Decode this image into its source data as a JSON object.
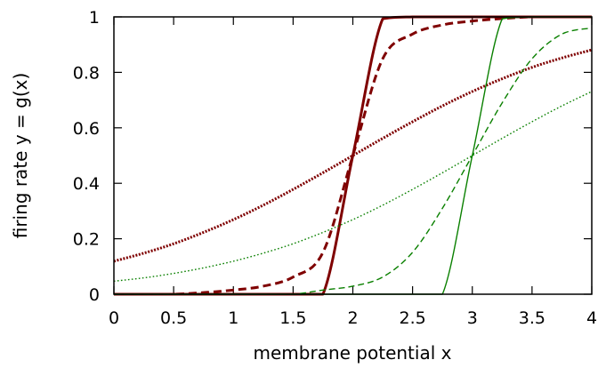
{
  "chart_data": {
    "type": "line",
    "title": "",
    "xlabel": "membrane potential x",
    "ylabel": "firing rate y = g(x)",
    "xlim": [
      0,
      4
    ],
    "ylim": [
      0,
      1
    ],
    "x_ticks": [
      "0",
      "0.5",
      "1",
      "1.5",
      "2",
      "2.5",
      "3",
      "3.5",
      "4"
    ],
    "y_ticks": [
      "0",
      "0.2",
      "0.4",
      "0.6",
      "0.8",
      "1"
    ],
    "grid": false,
    "legend": "none",
    "sampling": {
      "x_start": 0,
      "x_end": 4,
      "x_step": 0.25
    },
    "series": [
      {
        "color": "#7f0000",
        "style": "solid",
        "weight": "thick",
        "y": [
          0.0,
          0.0,
          0.0,
          0.0,
          0.0,
          0.0,
          0.0,
          0.0,
          0.5,
          0.993,
          1.0,
          1.0,
          1.0,
          1.0,
          1.0,
          1.0,
          1.0
        ]
      },
      {
        "color": "#7f0000",
        "style": "dashed",
        "weight": "thick",
        "y": [
          0.0,
          0.0,
          0.0,
          0.006,
          0.015,
          0.029,
          0.062,
          0.151,
          0.5,
          0.849,
          0.938,
          0.971,
          0.985,
          0.994,
          1.0,
          1.0,
          1.0
        ]
      },
      {
        "color": "#7f0000",
        "style": "dotted",
        "weight": "thick",
        "y": [
          0.119,
          0.148,
          0.182,
          0.223,
          0.269,
          0.321,
          0.378,
          0.438,
          0.5,
          0.562,
          0.622,
          0.679,
          0.731,
          0.777,
          0.818,
          0.852,
          0.881
        ]
      },
      {
        "color": "#0a8000",
        "style": "solid",
        "weight": "thin",
        "y": [
          0.0,
          0.0,
          0.0,
          0.0,
          0.0,
          0.0,
          0.0,
          0.0,
          0.0,
          0.0,
          0.0,
          0.0,
          0.5,
          0.993,
          1.0,
          1.0,
          1.0
        ]
      },
      {
        "color": "#0a8000",
        "style": "dashed",
        "weight": "thin",
        "y": [
          0.0,
          0.0,
          0.0,
          0.0,
          0.0,
          0.0,
          0.0,
          0.015,
          0.029,
          0.062,
          0.151,
          0.31,
          0.5,
          0.69,
          0.849,
          0.938,
          0.96
        ]
      },
      {
        "color": "#0a8000",
        "style": "dotted",
        "weight": "thin",
        "y": [
          0.047,
          0.059,
          0.075,
          0.095,
          0.119,
          0.148,
          0.182,
          0.223,
          0.269,
          0.321,
          0.378,
          0.438,
          0.5,
          0.562,
          0.622,
          0.679,
          0.731
        ]
      }
    ]
  }
}
